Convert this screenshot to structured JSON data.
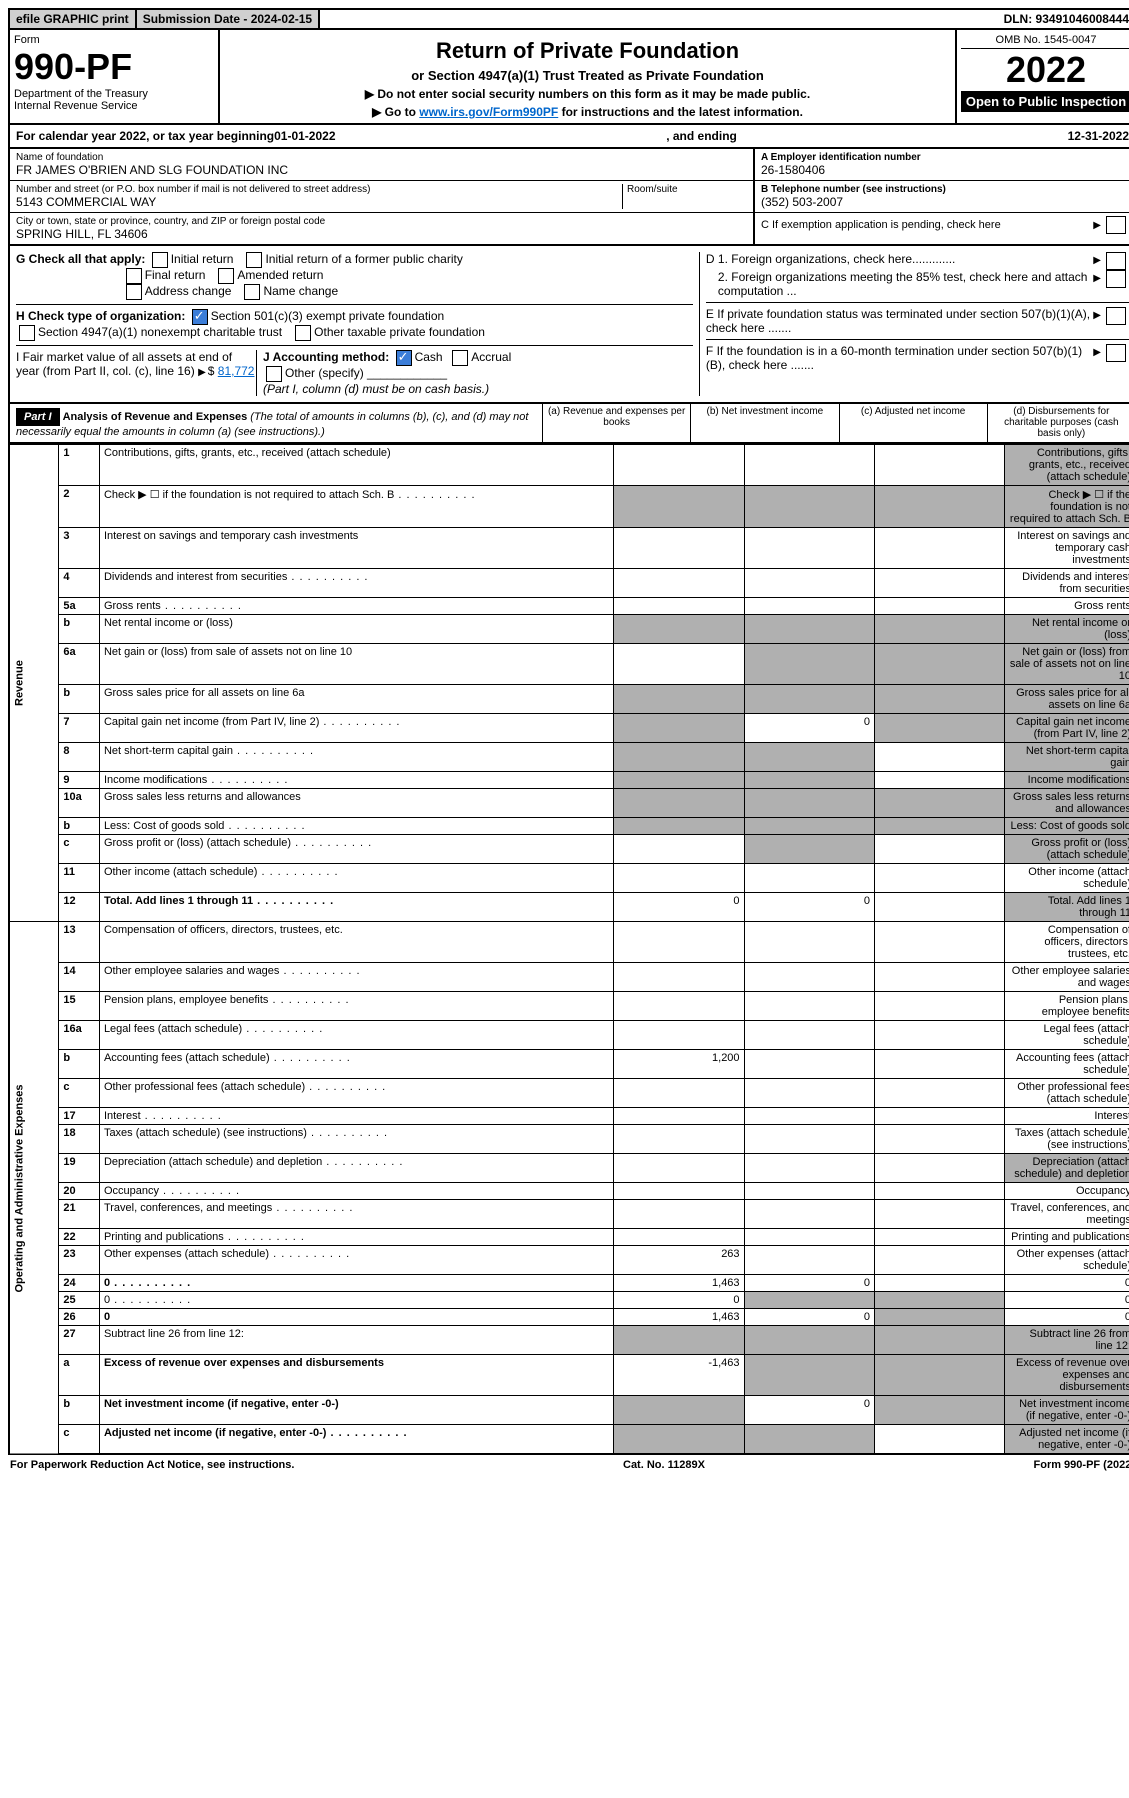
{
  "topbar": {
    "efile": "efile GRAPHIC print",
    "submission": "Submission Date - 2024-02-15",
    "dln": "DLN: 93491046008444"
  },
  "header": {
    "form_label": "Form",
    "form_no": "990-PF",
    "dept": "Department of the Treasury",
    "irs": "Internal Revenue Service",
    "title": "Return of Private Foundation",
    "subtitle": "or Section 4947(a)(1) Trust Treated as Private Foundation",
    "instr1": "▶ Do not enter social security numbers on this form as it may be made public.",
    "instr2_pre": "▶ Go to ",
    "instr2_link": "www.irs.gov/Form990PF",
    "instr2_post": " for instructions and the latest information.",
    "omb": "OMB No. 1545-0047",
    "year": "2022",
    "open": "Open to Public Inspection"
  },
  "calyear": {
    "pre": "For calendar year 2022, or tax year beginning ",
    "begin": "01-01-2022",
    "mid": ", and ending ",
    "end": "12-31-2022"
  },
  "entity": {
    "name_label": "Name of foundation",
    "name": "FR JAMES O'BRIEN AND SLG FOUNDATION INC",
    "addr_label": "Number and street (or P.O. box number if mail is not delivered to street address)",
    "addr": "5143 COMMERCIAL WAY",
    "room_label": "Room/suite",
    "city_label": "City or town, state or province, country, and ZIP or foreign postal code",
    "city": "SPRING HILL, FL  34606",
    "ein_label": "A Employer identification number",
    "ein": "26-1580406",
    "phone_label": "B Telephone number (see instructions)",
    "phone": "(352) 503-2007",
    "c_label": "C If exemption application is pending, check here",
    "d1": "D 1. Foreign organizations, check here.............",
    "d2": "2. Foreign organizations meeting the 85% test, check here and attach computation ...",
    "e_label": "E  If private foundation status was terminated under section 507(b)(1)(A), check here .......",
    "f_label": "F  If the foundation is in a 60-month termination under section 507(b)(1)(B), check here .......",
    "g_label": "G Check all that apply:",
    "g_opts": [
      "Initial return",
      "Initial return of a former public charity",
      "Final return",
      "Amended return",
      "Address change",
      "Name change"
    ],
    "h_label": "H Check type of organization:",
    "h_opt1": "Section 501(c)(3) exempt private foundation",
    "h_opt2": "Section 4947(a)(1) nonexempt charitable trust",
    "h_opt3": "Other taxable private foundation",
    "i_label": "I Fair market value of all assets at end of year (from Part II, col. (c), line 16)",
    "i_value": "81,772",
    "j_label": "J Accounting method:",
    "j_cash": "Cash",
    "j_accrual": "Accrual",
    "j_other": "Other (specify)",
    "j_note": "(Part I, column (d) must be on cash basis.)"
  },
  "part1": {
    "label": "Part I",
    "title": "Analysis of Revenue and Expenses",
    "note": "(The total of amounts in columns (b), (c), and (d) may not necessarily equal the amounts in column (a) (see instructions).)",
    "cols": {
      "a": "(a)   Revenue and expenses per books",
      "b": "(b)   Net investment income",
      "c": "(c)   Adjusted net income",
      "d": "(d)   Disbursements for charitable purposes (cash basis only)"
    }
  },
  "sections": {
    "revenue": "Revenue",
    "expenses": "Operating and Administrative Expenses"
  },
  "lines": [
    {
      "n": "1",
      "d": "Contributions, gifts, grants, etc., received (attach schedule)",
      "shade_d": true
    },
    {
      "n": "2",
      "d": "Check ▶ ☐ if the foundation is not required to attach Sch. B",
      "dots": true,
      "shade_all": true
    },
    {
      "n": "3",
      "d": "Interest on savings and temporary cash investments"
    },
    {
      "n": "4",
      "d": "Dividends and interest from securities",
      "dots": true
    },
    {
      "n": "5a",
      "d": "Gross rents",
      "dots": true
    },
    {
      "n": "b",
      "d": "Net rental income or (loss)",
      "shade_all": true
    },
    {
      "n": "6a",
      "d": "Net gain or (loss) from sale of assets not on line 10",
      "shade_bcd": true
    },
    {
      "n": "b",
      "d": "Gross sales price for all assets on line 6a",
      "shade_all": true
    },
    {
      "n": "7",
      "d": "Capital gain net income (from Part IV, line 2)",
      "dots": true,
      "b": "0",
      "shade_acd": true
    },
    {
      "n": "8",
      "d": "Net short-term capital gain",
      "dots": true,
      "shade_abd": true
    },
    {
      "n": "9",
      "d": "Income modifications",
      "dots": true,
      "shade_abd": true
    },
    {
      "n": "10a",
      "d": "Gross sales less returns and allowances",
      "shade_all": true
    },
    {
      "n": "b",
      "d": "Less: Cost of goods sold",
      "dots": true,
      "shade_all": true
    },
    {
      "n": "c",
      "d": "Gross profit or (loss) (attach schedule)",
      "dots": true,
      "shade_bd": true
    },
    {
      "n": "11",
      "d": "Other income (attach schedule)",
      "dots": true
    },
    {
      "n": "12",
      "d": "Total. Add lines 1 through 11",
      "dots": true,
      "bold": true,
      "a": "0",
      "b": "0",
      "shade_d": true
    }
  ],
  "exp_lines": [
    {
      "n": "13",
      "d": "Compensation of officers, directors, trustees, etc."
    },
    {
      "n": "14",
      "d": "Other employee salaries and wages",
      "dots": true
    },
    {
      "n": "15",
      "d": "Pension plans, employee benefits",
      "dots": true
    },
    {
      "n": "16a",
      "d": "Legal fees (attach schedule)",
      "dots": true
    },
    {
      "n": "b",
      "d": "Accounting fees (attach schedule)",
      "dots": true,
      "a": "1,200"
    },
    {
      "n": "c",
      "d": "Other professional fees (attach schedule)",
      "dots": true
    },
    {
      "n": "17",
      "d": "Interest",
      "dots": true
    },
    {
      "n": "18",
      "d": "Taxes (attach schedule) (see instructions)",
      "dots": true
    },
    {
      "n": "19",
      "d": "Depreciation (attach schedule) and depletion",
      "dots": true,
      "shade_d": true
    },
    {
      "n": "20",
      "d": "Occupancy",
      "dots": true
    },
    {
      "n": "21",
      "d": "Travel, conferences, and meetings",
      "dots": true
    },
    {
      "n": "22",
      "d": "Printing and publications",
      "dots": true
    },
    {
      "n": "23",
      "d": "Other expenses (attach schedule)",
      "dots": true,
      "a": "263"
    },
    {
      "n": "24",
      "d": "0",
      "dots": true,
      "bold": true,
      "a": "1,463",
      "b": "0"
    },
    {
      "n": "25",
      "d": "0",
      "dots": true,
      "a": "0",
      "shade_bc": true
    },
    {
      "n": "26",
      "d": "0",
      "bold": true,
      "a": "1,463",
      "b": "0",
      "shade_c": true
    },
    {
      "n": "27",
      "d": "Subtract line 26 from line 12:",
      "shade_all": true
    },
    {
      "n": "a",
      "d": "Excess of revenue over expenses and disbursements",
      "bold": true,
      "a": "-1,463",
      "shade_bcd": true
    },
    {
      "n": "b",
      "d": "Net investment income (if negative, enter -0-)",
      "bold": true,
      "b": "0",
      "shade_acd": true
    },
    {
      "n": "c",
      "d": "Adjusted net income (if negative, enter -0-)",
      "bold": true,
      "dots": true,
      "shade_abd": true
    }
  ],
  "footer": {
    "left": "For Paperwork Reduction Act Notice, see instructions.",
    "mid": "Cat. No. 11289X",
    "right": "Form 990-PF (2022)"
  }
}
